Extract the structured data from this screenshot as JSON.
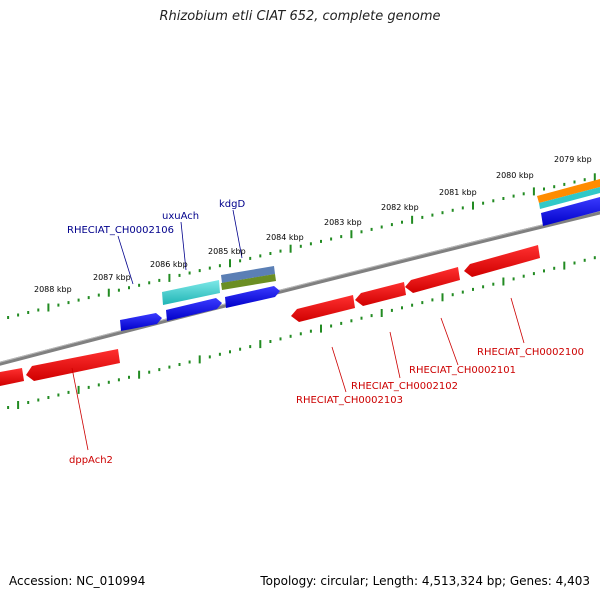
{
  "title": "Rhizobium etli CIAT 652, complete genome",
  "footer": {
    "accession": "Accession: NC_010994",
    "topology": "Topology: circular; Length: 4,513,324 bp; Genes: 4,403"
  },
  "colors": {
    "forward_cds": "#0000ee",
    "reverse_cds": "#ee0000",
    "forward_label": "#00008b",
    "reverse_label": "#cc0000",
    "backbone": "#808080",
    "ticks": "#228b22",
    "rna_cyan": "#30c8c8",
    "rna_steel": "#5b7fb5",
    "rna_olive": "#6b8e23",
    "rna_orange": "#ff8c00"
  },
  "tick_labels": [
    "2079 kbp",
    "2080 kbp",
    "2081 kbp",
    "2082 kbp",
    "2083 kbp",
    "2084 kbp",
    "2085 kbp",
    "2086 kbp",
    "2087 kbp",
    "2088 kbp"
  ],
  "forward_genes": [
    {
      "label": "RHECIAT_CH0002106"
    },
    {
      "label": "uxuAch"
    },
    {
      "label": "kdgD"
    }
  ],
  "reverse_genes": [
    {
      "label": "dppAch2"
    },
    {
      "label": "RHECIAT_CH0002103"
    },
    {
      "label": "RHECIAT_CH0002102"
    },
    {
      "label": "RHECIAT_CH0002101"
    },
    {
      "label": "RHECIAT_CH0002100"
    }
  ]
}
